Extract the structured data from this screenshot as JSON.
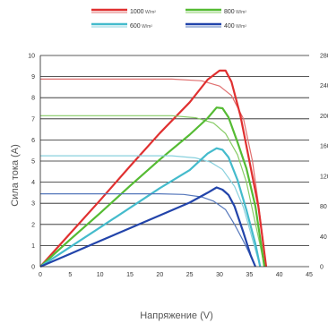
{
  "chart_data": {
    "type": "line",
    "xlabel": "Напряжение (V)",
    "ylabel": "Сила тока (A)",
    "xlim": [
      0,
      45
    ],
    "ylim_left": [
      0,
      10
    ],
    "ylim_right": [
      0,
      280
    ],
    "x_ticks": [
      "0",
      "5",
      "10",
      "15",
      "20",
      "25",
      "30",
      "35",
      "40",
      "45"
    ],
    "y_ticks_left": [
      "0",
      "1",
      "2",
      "3",
      "4",
      "5",
      "6",
      "7",
      "8",
      "9",
      "10"
    ],
    "y_ticks_right": [
      "0",
      "40",
      "80",
      "120",
      "160",
      "200",
      "240",
      "280"
    ],
    "grid": "horizontal",
    "legend": "top-center",
    "series": [
      {
        "name": "1000",
        "unit": "W/m²",
        "color": "#e03030",
        "light_color": "#e07070",
        "iv": [
          [
            0,
            8.88
          ],
          [
            22,
            8.88
          ],
          [
            27,
            8.8
          ],
          [
            30,
            8.55
          ],
          [
            32,
            8.1
          ],
          [
            34,
            7.0
          ],
          [
            35.5,
            5.0
          ],
          [
            36.5,
            3.0
          ],
          [
            37.3,
            1.2
          ],
          [
            37.8,
            0
          ]
        ],
        "pv": [
          [
            0,
            0
          ],
          [
            5,
            44
          ],
          [
            10,
            88
          ],
          [
            15,
            133
          ],
          [
            20,
            177
          ],
          [
            25,
            218
          ],
          [
            28,
            248
          ],
          [
            30,
            260
          ],
          [
            31,
            260
          ],
          [
            32,
            245
          ],
          [
            33.5,
            200
          ],
          [
            35,
            140
          ],
          [
            36.5,
            80
          ],
          [
            37.8,
            0
          ]
        ]
      },
      {
        "name": "800",
        "unit": "W/m²",
        "color": "#55bb33",
        "light_color": "#88cc66",
        "iv": [
          [
            0,
            7.15
          ],
          [
            22,
            7.15
          ],
          [
            26,
            7.05
          ],
          [
            29,
            6.8
          ],
          [
            31,
            6.3
          ],
          [
            33,
            5.3
          ],
          [
            34.5,
            4.0
          ],
          [
            35.8,
            2.3
          ],
          [
            36.8,
            1.0
          ],
          [
            37.5,
            0
          ]
        ],
        "pv": [
          [
            0,
            0
          ],
          [
            5,
            36
          ],
          [
            10,
            71
          ],
          [
            15,
            107
          ],
          [
            20,
            142
          ],
          [
            25,
            175
          ],
          [
            28,
            197
          ],
          [
            29.5,
            211
          ],
          [
            30.5,
            210
          ],
          [
            31.5,
            198
          ],
          [
            33,
            165
          ],
          [
            34.5,
            130
          ],
          [
            36,
            80
          ],
          [
            37.5,
            0
          ]
        ]
      },
      {
        "name": "600",
        "unit": "W/m²",
        "color": "#44bbcc",
        "light_color": "#88d0dd",
        "iv": [
          [
            0,
            5.25
          ],
          [
            22,
            5.25
          ],
          [
            26,
            5.15
          ],
          [
            28.5,
            4.95
          ],
          [
            30.5,
            4.6
          ],
          [
            32.5,
            3.8
          ],
          [
            34,
            2.8
          ],
          [
            35.2,
            1.6
          ],
          [
            36.2,
            0.6
          ],
          [
            36.8,
            0
          ]
        ],
        "pv": [
          [
            0,
            0
          ],
          [
            5,
            26
          ],
          [
            10,
            52
          ],
          [
            15,
            78
          ],
          [
            20,
            104
          ],
          [
            25,
            128
          ],
          [
            28,
            150
          ],
          [
            29.5,
            157
          ],
          [
            30.5,
            155
          ],
          [
            31.5,
            145
          ],
          [
            33,
            115
          ],
          [
            34.5,
            75
          ],
          [
            36,
            30
          ],
          [
            36.8,
            0
          ]
        ]
      },
      {
        "name": "400",
        "unit": "W/m²",
        "color": "#2244aa",
        "light_color": "#5577bb",
        "iv": [
          [
            0,
            3.45
          ],
          [
            20,
            3.45
          ],
          [
            24,
            3.42
          ],
          [
            27,
            3.3
          ],
          [
            29,
            3.1
          ],
          [
            31,
            2.7
          ],
          [
            32.5,
            2.0
          ],
          [
            34,
            1.2
          ],
          [
            35.2,
            0.5
          ],
          [
            36,
            0
          ]
        ],
        "pv": [
          [
            0,
            0
          ],
          [
            5,
            17
          ],
          [
            10,
            34
          ],
          [
            15,
            51
          ],
          [
            20,
            68
          ],
          [
            25,
            85
          ],
          [
            28,
            98
          ],
          [
            29.5,
            105
          ],
          [
            30.5,
            102
          ],
          [
            31.5,
            95
          ],
          [
            32.5,
            80
          ],
          [
            34,
            45
          ],
          [
            35.2,
            15
          ],
          [
            36,
            0
          ]
        ]
      }
    ]
  }
}
